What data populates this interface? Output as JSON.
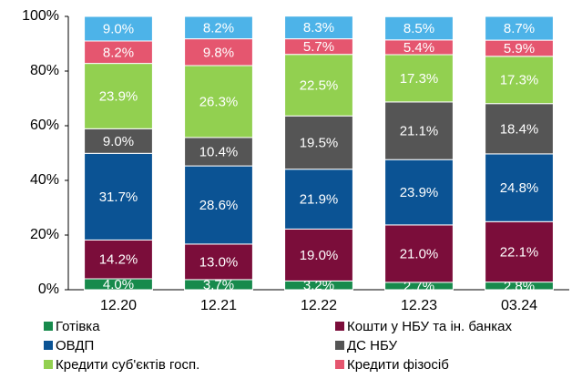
{
  "chart_data": {
    "type": "stacked_bar",
    "categories": [
      "12.20",
      "12.21",
      "12.22",
      "12.23",
      "03.24"
    ],
    "series": [
      {
        "name": "Готівка",
        "color": "#178a4c",
        "values": [
          4.0,
          3.7,
          3.2,
          2.7,
          2.8
        ],
        "value_labels": [
          "4.0%",
          "3.7%",
          "3.2%",
          "2.7%",
          "2.8%"
        ]
      },
      {
        "name": "Кошти у НБУ та ін. банках",
        "color": "#7b0d3a",
        "values": [
          14.2,
          13.0,
          19.0,
          21.0,
          22.1
        ],
        "value_labels": [
          "14.2%",
          "13.0%",
          "19.0%",
          "21.0%",
          "22.1%"
        ]
      },
      {
        "name": "ОВДП",
        "color": "#0b5394",
        "values": [
          31.7,
          28.6,
          21.9,
          23.9,
          24.8
        ],
        "value_labels": [
          "31.7%",
          "28.6%",
          "21.9%",
          "23.9%",
          "24.8%"
        ]
      },
      {
        "name": "ДС НБУ",
        "color": "#555555",
        "values": [
          9.0,
          10.4,
          19.5,
          21.1,
          18.4
        ],
        "value_labels": [
          "9.0%",
          "10.4%",
          "19.5%",
          "21.1%",
          "18.4%"
        ]
      },
      {
        "name": "Кредити суб'єктів госп.",
        "color": "#92d050",
        "values": [
          23.9,
          26.3,
          22.5,
          17.3,
          17.3
        ],
        "value_labels": [
          "23.9%",
          "26.3%",
          "22.5%",
          "17.3%",
          "17.3%"
        ]
      },
      {
        "name": "Кредити фізосіб",
        "color": "#e5566f",
        "values": [
          8.2,
          9.8,
          5.7,
          5.4,
          5.9
        ],
        "value_labels": [
          "8.2%",
          "9.8%",
          "5.7%",
          "5.4%",
          "5.9%"
        ]
      },
      {
        "color": "#4db3e8",
        "values": [
          9.0,
          8.2,
          8.3,
          8.5,
          8.7
        ],
        "value_labels": [
          "9.0%",
          "8.2%",
          "8.3%",
          "8.5%",
          "8.7%"
        ]
      }
    ],
    "ylim": [
      0,
      100
    ],
    "yticks": [
      {
        "value": 0,
        "label": "0%"
      },
      {
        "value": 20,
        "label": "20%"
      },
      {
        "value": 40,
        "label": "40%"
      },
      {
        "value": 60,
        "label": "60%"
      },
      {
        "value": 80,
        "label": "80%"
      },
      {
        "value": 100,
        "label": "100%"
      }
    ],
    "grid": false
  }
}
